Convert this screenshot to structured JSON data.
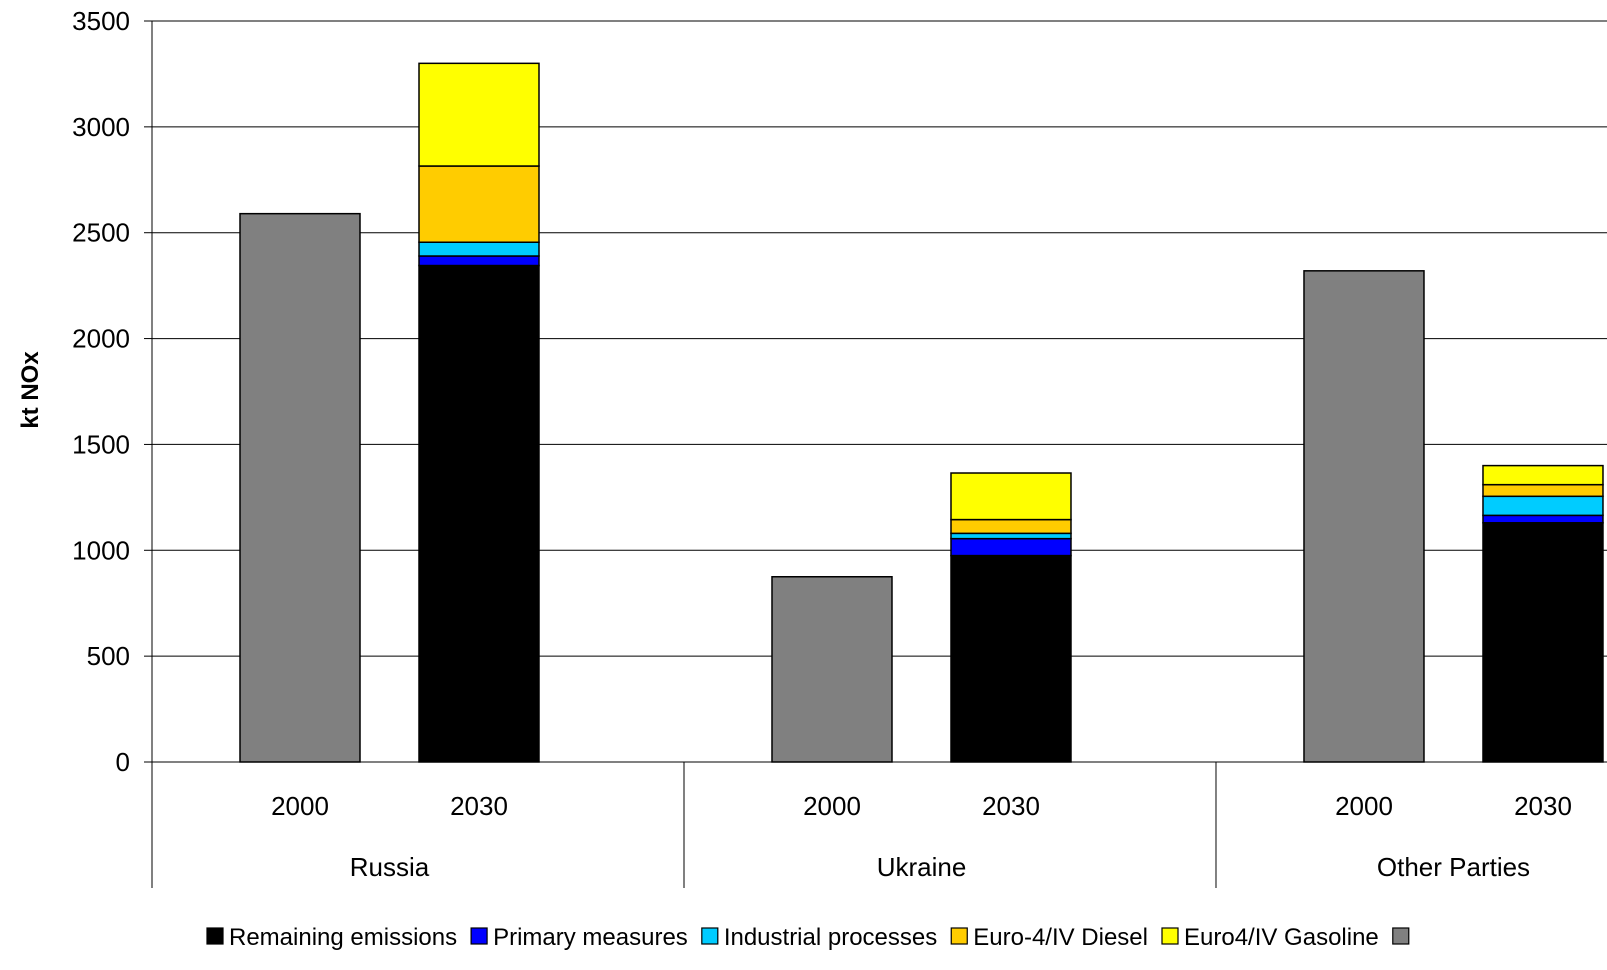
{
  "chart_data": {
    "type": "bar",
    "stacked": true,
    "title": "",
    "xlabel": "",
    "ylabel": "kt NOx",
    "ylim": [
      0,
      3500
    ],
    "yticks": [
      0,
      500,
      1000,
      1500,
      2000,
      2500,
      3000,
      3500
    ],
    "grid": true,
    "legend_position": "bottom",
    "groups": [
      {
        "name": "Russia",
        "categories": [
          "2000",
          "2030"
        ]
      },
      {
        "name": "Ukraine",
        "categories": [
          "2000",
          "2030"
        ]
      },
      {
        "name": "Other Parties",
        "categories": [
          "2000",
          "2030"
        ]
      }
    ],
    "series": [
      {
        "name": "Remaining emissions",
        "color": "#000000",
        "values": [
          null,
          2345,
          null,
          975,
          null,
          1130
        ]
      },
      {
        "name": "Primary measures",
        "color": "#0000ff",
        "values": [
          null,
          45,
          null,
          80,
          null,
          35
        ]
      },
      {
        "name": "Industrial processes",
        "color": "#00ccff",
        "values": [
          null,
          65,
          null,
          25,
          null,
          90
        ]
      },
      {
        "name": "Euro-4/IV Diesel",
        "color": "#ffcc00",
        "values": [
          null,
          360,
          null,
          65,
          null,
          55
        ]
      },
      {
        "name": "Euro4/IV Gasoline",
        "color": "#ffff00",
        "values": [
          null,
          485,
          null,
          220,
          null,
          90
        ]
      },
      {
        "name": "",
        "color": "#808080",
        "values": [
          2590,
          null,
          875,
          null,
          2320,
          null
        ]
      }
    ]
  }
}
